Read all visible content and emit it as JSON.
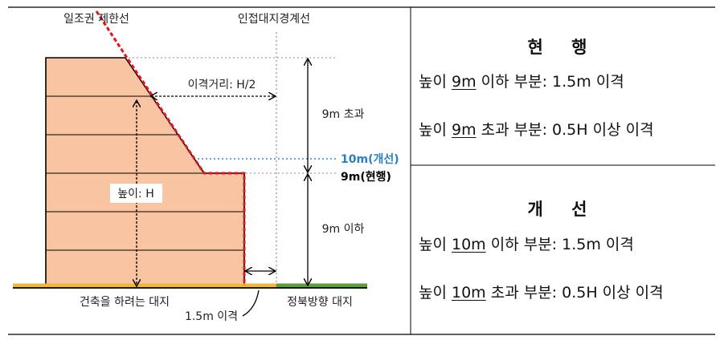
{
  "diagram": {
    "labels": {
      "limit_line": "일조권 제한선",
      "boundary_line": "인접대지경계선",
      "distance": "이격거리: H/2",
      "over_9m": "9m 초과",
      "improved_10m": "10m(개선)",
      "current_9m": "9m(현행)",
      "under_9m": "9m 이하",
      "height": "높이: H",
      "building_lot": "건축을 하려는 대지",
      "north_lot": "정북방향 대지",
      "gap_15": "1.5m 이격"
    },
    "colors": {
      "building_fill": "#f8c4a2",
      "limit_line": "#e3141b",
      "improved_line": "#2a8ecb",
      "ground_left": "#f0b73a",
      "ground_right": "#5c9e3a"
    }
  },
  "current": {
    "title": "현  행",
    "row1": {
      "pre": "높이 ",
      "value": "9m",
      "post": " 이하 부분: 1.5m 이격"
    },
    "row2": {
      "pre": "높이 ",
      "value": "9m",
      "post": " 초과 부분: 0.5H 이상 이격"
    }
  },
  "improved": {
    "title": "개  선",
    "row1": {
      "pre": "높이 ",
      "value": "10m",
      "post": " 이하 부분: 1.5m 이격"
    },
    "row2": {
      "pre": "높이 ",
      "value": "10m",
      "post": " 초과 부분: 0.5H 이상 이격"
    }
  }
}
